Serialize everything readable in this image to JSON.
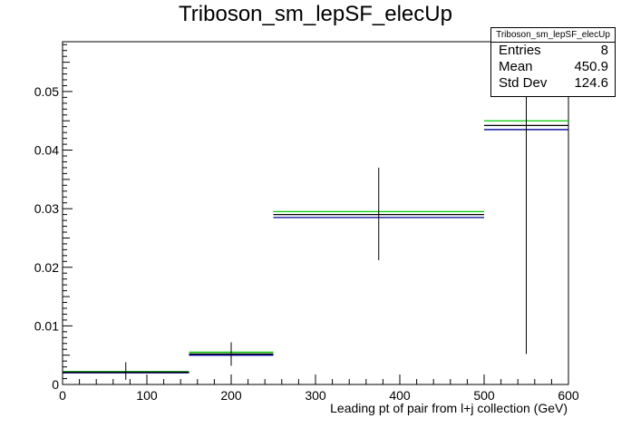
{
  "chart_data": {
    "type": "histogram",
    "title": "Triboson_sm_lepSF_elecUp",
    "xlabel": "Leading pt of pair from l+j collection (GeV)",
    "ylabel": "",
    "xlim": [
      0,
      600
    ],
    "ylim": [
      0,
      0.0585
    ],
    "xticks": [
      "0",
      "100",
      "200",
      "300",
      "400",
      "500",
      "600"
    ],
    "yticks": [
      "0",
      "0.01",
      "0.02",
      "0.03",
      "0.04",
      "0.05"
    ],
    "bins": [
      {
        "xlow": 0,
        "xhigh": 150,
        "center": 75,
        "err_low": 0.0008,
        "err_high": 0.0038
      },
      {
        "xlow": 150,
        "xhigh": 250,
        "center": 200,
        "err_low": 0.0032,
        "err_high": 0.0072
      },
      {
        "xlow": 250,
        "xhigh": 500,
        "center": 375,
        "err_low": 0.0212,
        "err_high": 0.037
      },
      {
        "xlow": 500,
        "xhigh": 600,
        "center": 550,
        "err_low": 0.0052,
        "err_high": 0.0585
      }
    ],
    "series": [
      {
        "color": "#00cc00",
        "values": [
          0.0022,
          0.0055,
          0.0295,
          0.045
        ]
      },
      {
        "color": "#000099",
        "values": [
          0.002,
          0.005,
          0.0285,
          0.0435
        ]
      },
      {
        "color": "#000000",
        "values": [
          0.0021,
          0.0052,
          0.029,
          0.0442
        ]
      }
    ],
    "stats": {
      "title": "Triboson_sm_lepSF_elecUp",
      "entries_label": "Entries",
      "entries": "8",
      "mean_label": "Mean",
      "mean": "450.9",
      "std_label": "Std Dev",
      "std": "124.6"
    }
  }
}
